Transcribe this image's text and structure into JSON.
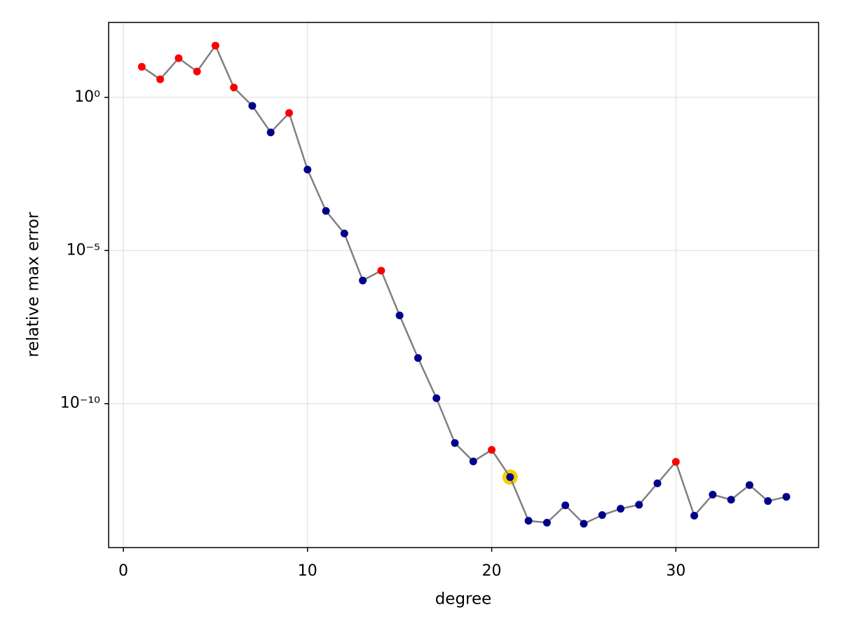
{
  "chart_data": {
    "type": "line",
    "x_label": "degree",
    "y_label": "relative max error",
    "log_y": true,
    "grid": true,
    "xlim": [
      -0.8,
      37.75
    ],
    "xticks": [
      0,
      10,
      20,
      30
    ],
    "ylim": [
      280.0,
      2e-15
    ],
    "yticks": [
      {
        "value": 1,
        "label": "10⁰"
      },
      {
        "value": 1e-05,
        "label": "10⁻⁵"
      },
      {
        "value": 1e-10,
        "label": "10⁻¹⁰"
      }
    ],
    "series": [
      {
        "color": "#808080",
        "x": [
          1,
          2,
          3,
          4,
          5,
          6,
          7,
          8,
          9,
          10,
          11,
          12,
          13,
          14,
          15,
          16,
          17,
          18,
          19,
          20,
          21,
          22,
          23,
          24,
          25,
          26,
          27,
          28,
          29,
          30,
          31,
          32,
          33,
          34,
          35,
          36
        ],
        "values": [
          10,
          3.9,
          19,
          7,
          49,
          2.1,
          0.53,
          0.072,
          0.31,
          0.0044,
          0.000196,
          3.6e-05,
          1.05e-06,
          2.2e-06,
          7.6e-08,
          3.1e-09,
          1.5e-10,
          5.2e-12,
          1.3e-12,
          3.1e-12,
          4e-13,
          1.5e-14,
          1.3e-14,
          4.8e-14,
          1.2e-14,
          2.3e-14,
          3.7e-14,
          5e-14,
          2.5e-13,
          1.26e-12,
          2.2e-14,
          1.07e-13,
          7.3e-14,
          2.2e-13,
          6.6e-14,
          9.1e-14
        ],
        "marker_colors": [
          "#ff0000",
          "#ff0000",
          "#ff0000",
          "#ff0000",
          "#ff0000",
          "#ff0000",
          "#00008b",
          "#00008b",
          "#ff0000",
          "#00008b",
          "#00008b",
          "#00008b",
          "#00008b",
          "#ff0000",
          "#00008b",
          "#00008b",
          "#00008b",
          "#00008b",
          "#00008b",
          "#ff0000",
          "#00008b",
          "#00008b",
          "#00008b",
          "#00008b",
          "#00008b",
          "#00008b",
          "#00008b",
          "#00008b",
          "#00008b",
          "#ff0000",
          "#00008b",
          "#00008b",
          "#00008b",
          "#00008b",
          "#00008b",
          "#00008b"
        ]
      },
      {
        "color": "#f5d000",
        "style": "ring",
        "x": [
          21
        ],
        "values": [
          4e-13
        ]
      }
    ]
  }
}
